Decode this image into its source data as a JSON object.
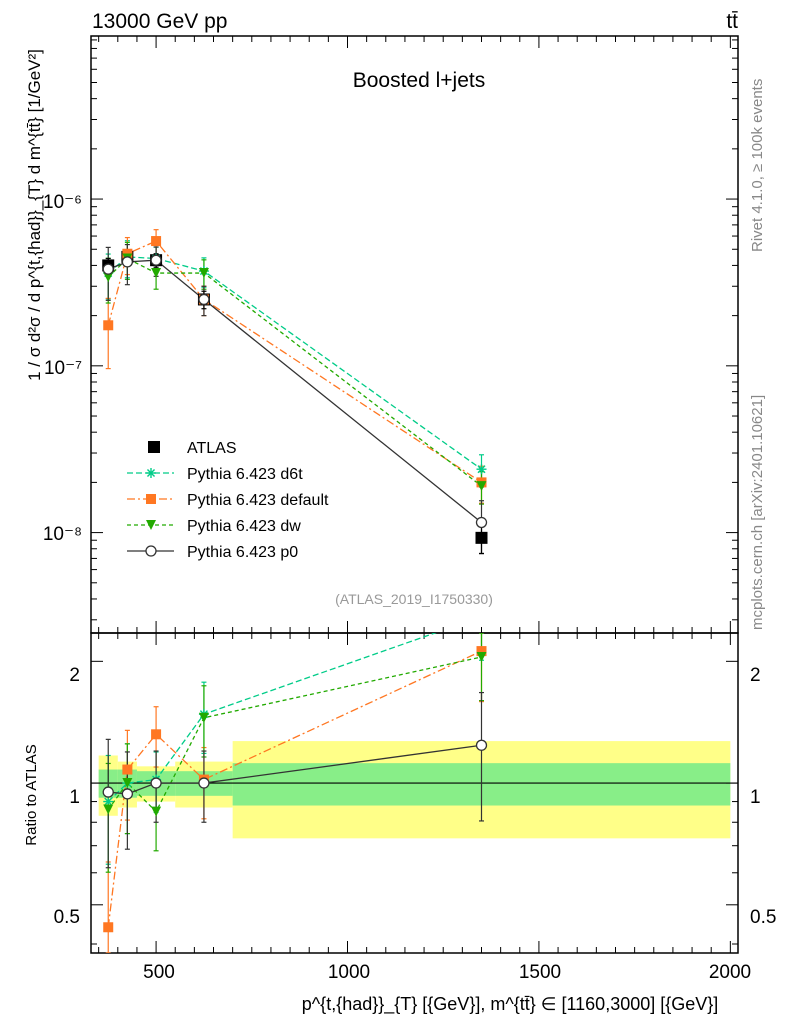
{
  "header": {
    "energy_label": "13000 GeV pp",
    "process_label": "tt̄",
    "plot_title": "Boosted l+jets",
    "analysis_id": "(ATLAS_2019_I1750330)",
    "side_label_rivet": "Rivet 4.1.0, ≥ 100k events",
    "side_label_site": "mcplots.cern.ch [arXiv:2401.10621]"
  },
  "axes": {
    "ylabel_main": "1 / σ d²σ / d p^{t,{had}}_{T} d m^{tt̄} [1/GeV²]",
    "ylabel_ratio": "Ratio to ATLAS",
    "xlabel": "p^{t,{had}}_{T} [{GeV}], m^{tt̄} ∈ [1160,3000] [{GeV}]",
    "main_yticks": [
      "10⁻⁸",
      "10⁻⁷",
      "10⁻⁶"
    ],
    "ratio_yticks": [
      "0.5",
      "1",
      "2"
    ],
    "xticks": [
      "500",
      "1000",
      "1500",
      "2000"
    ]
  },
  "chart_data": {
    "type": "scatter",
    "xlim": [
      330,
      2020
    ],
    "ylim_main": [
      2.5e-09,
      9.5e-06
    ],
    "ylim_ratio": [
      0.38,
      2.35
    ],
    "x": [
      375,
      425,
      500,
      625,
      1350
    ],
    "bin_edges": [
      350,
      400,
      450,
      550,
      700,
      2000
    ],
    "data": {
      "name": "ATLAS",
      "values": [
        4e-07,
        4.5e-07,
        4.3e-07,
        2.5e-07,
        9.3e-09
      ],
      "err": [
        4e-08,
        4e-08,
        4e-08,
        3e-08,
        1.8e-09
      ],
      "band_stat": [
        0.08,
        0.08,
        0.07,
        0.07,
        0.12
      ],
      "band_total": [
        0.17,
        0.13,
        0.1,
        0.13,
        0.27
      ]
    },
    "series": [
      {
        "name": "Pythia 6.423 d6t",
        "color": "#00cc88",
        "dash": "6,3",
        "marker": "star",
        "values": [
          3.6e-07,
          4.5e-07,
          4.4e-07,
          3.7e-07,
          2.4e-08
        ],
        "ratio": [
          0.9,
          1.0,
          1.02,
          1.48,
          2.58
        ],
        "rel_err": [
          0.3,
          0.25,
          0.17,
          0.2,
          0.22
        ]
      },
      {
        "name": "Pythia 6.423 default",
        "color": "#ff7722",
        "dash": "8,3,2,3",
        "marker": "square",
        "values": [
          1.75e-07,
          4.7e-07,
          5.6e-07,
          2.5e-07,
          2e-08
        ],
        "ratio": [
          0.44,
          1.08,
          1.32,
          1.02,
          2.12
        ],
        "rel_err": [
          0.45,
          0.25,
          0.17,
          0.2,
          0.25
        ]
      },
      {
        "name": "Pythia 6.423 dw",
        "color": "#22aa00",
        "dash": "4,3",
        "marker": "triangle",
        "values": [
          3.4e-07,
          4.4e-07,
          3.6e-07,
          3.6e-07,
          1.9e-08
        ],
        "ratio": [
          0.86,
          1.0,
          0.85,
          1.45,
          2.05
        ],
        "rel_err": [
          0.3,
          0.25,
          0.2,
          0.2,
          0.22
        ]
      },
      {
        "name": "Pythia 6.423 p0",
        "color": "#333333",
        "dash": "",
        "marker": "circle",
        "values": [
          3.8e-07,
          4.2e-07,
          4.3e-07,
          2.5e-07,
          1.15e-08
        ],
        "ratio": [
          0.95,
          0.94,
          1.0,
          1.0,
          1.24
        ],
        "rel_err": [
          0.35,
          0.27,
          0.2,
          0.2,
          0.35
        ]
      }
    ]
  }
}
